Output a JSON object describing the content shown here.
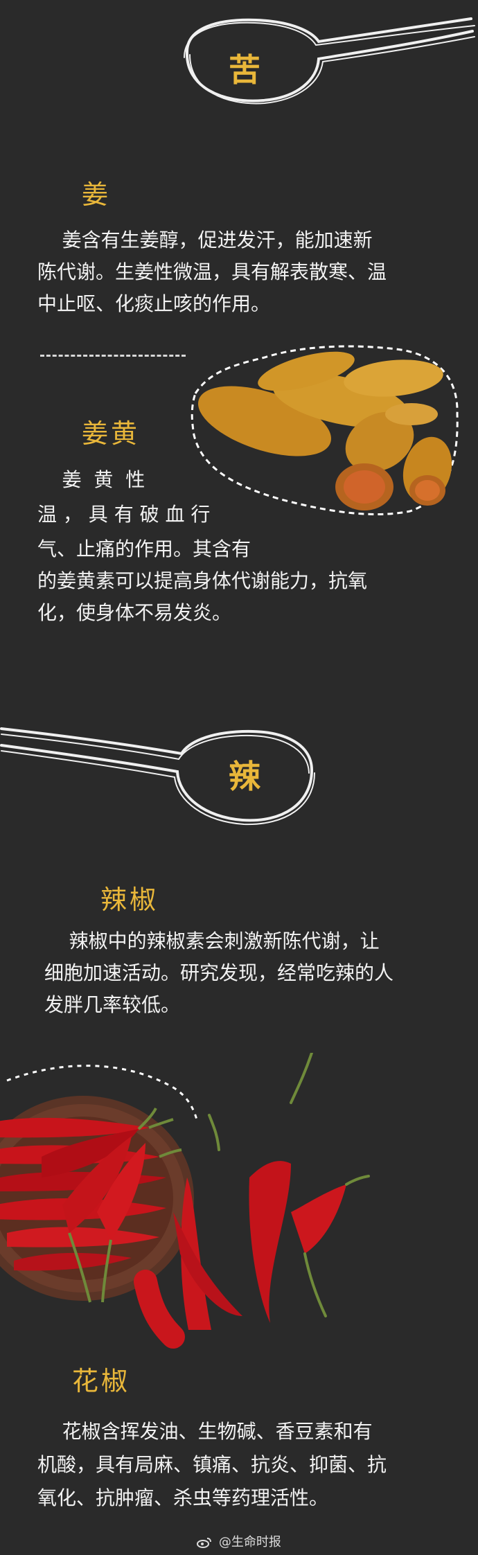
{
  "sections": {
    "bitter": {
      "char": "苦",
      "ginger": {
        "title": "姜",
        "lines": [
          "    姜含有生姜醇，促进发汗，能加速新",
          "陈代谢。生姜性微温，具有解表散寒、温",
          "中止呕、化痰止咳的作用。"
        ]
      },
      "turmeric": {
        "title": "姜黄",
        "lines": [
          "    姜  黄  性",
          "温 ， 具 有 破 血 行",
          "气、止痛的作用。其含有",
          "的姜黄素可以提高身体代谢能力，抗氧",
          "化，使身体不易发炎。"
        ]
      }
    },
    "spicy": {
      "char": "辣",
      "chili": {
        "title": "辣椒",
        "lines": [
          "    辣椒中的辣椒素会刺激新陈代谢，让",
          "细胞加速活动。研究发现，经常吃辣的人",
          "发胖几率较低。"
        ]
      },
      "pepper": {
        "title": "花椒",
        "lines": [
          "    花椒含挥发油、生物碱、香豆素和有",
          "机酸，具有局麻、镇痛、抗炎、抑菌、抗",
          "氧化、抗肿瘤、杀虫等药理活性。"
        ]
      }
    }
  },
  "footer": {
    "handle": "@生命时报"
  },
  "colors": {
    "accent": "#e9b73a",
    "background": "#2a2a2a",
    "text": "#f2f2f2"
  },
  "icons": [
    "spoon-icon",
    "weibo-icon"
  ]
}
